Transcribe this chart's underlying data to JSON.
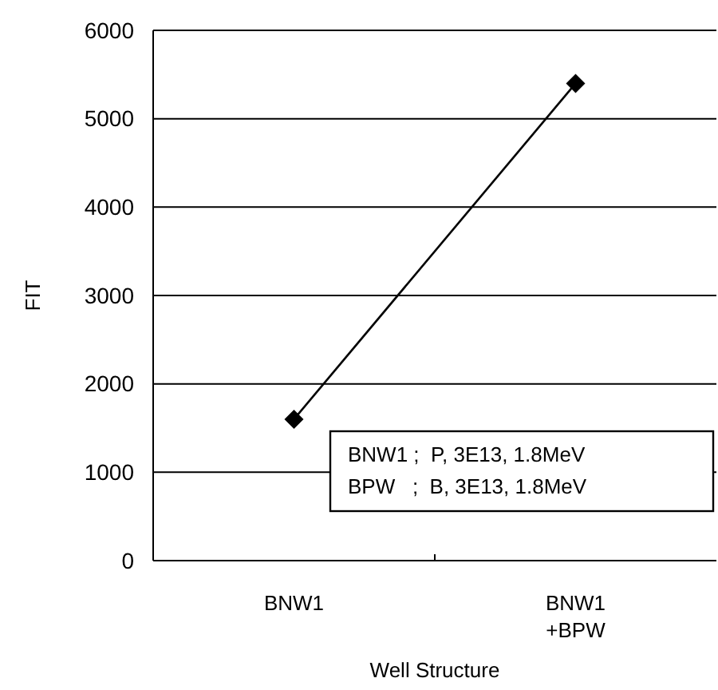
{
  "chart_data": {
    "type": "line",
    "xlabel": "Well Structure",
    "ylabel": "FIT",
    "categories": [
      "BNW1",
      "BNW1\n+BPW"
    ],
    "series": [
      {
        "color": "#000000",
        "values": [
          1600,
          5400
        ]
      }
    ],
    "ylim": [
      0,
      6000
    ],
    "yticks": [
      0,
      1000,
      2000,
      3000,
      4000,
      5000,
      6000
    ],
    "grid": "y",
    "marker": "diamond",
    "annotations": [
      "BNW1 ;  P, 3E13, 1.8MeV",
      "BPW   ;  B, 3E13, 1.8MeV"
    ]
  }
}
